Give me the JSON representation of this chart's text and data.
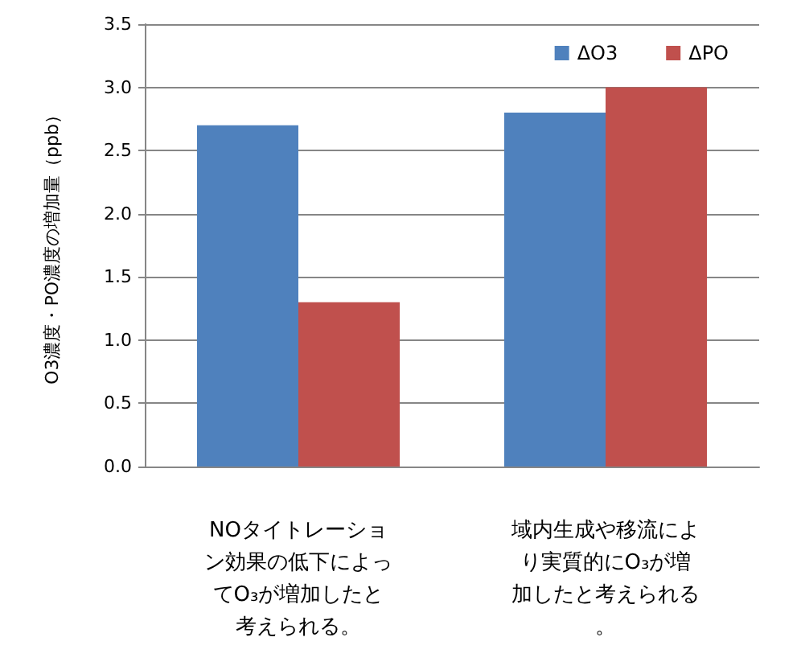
{
  "chart_data": {
    "type": "bar",
    "ylabel": "O3濃度・PO濃度の増加量（ppb）",
    "categories": [
      "NOタイトレーション効果の低下によってO₃が増加したと考えられる。",
      "域内生成や移流により実質的にO₃が増加したと考えられる。"
    ],
    "series": [
      {
        "name": "ΔO3",
        "color": "#4f81bd",
        "values": [
          2.7,
          2.8
        ]
      },
      {
        "name": "ΔPO",
        "color": "#c0504d",
        "values": [
          1.3,
          3.0
        ]
      }
    ],
    "ylim": [
      0,
      3.5
    ],
    "yticks": [
      {
        "value": 0,
        "label": "0.0"
      },
      {
        "value": 0.5,
        "label": "0.5"
      },
      {
        "value": 1,
        "label": "1.0"
      },
      {
        "value": 1.5,
        "label": "1.5"
      },
      {
        "value": 2,
        "label": "2.0"
      },
      {
        "value": 2.5,
        "label": "2.5"
      },
      {
        "value": 3,
        "label": "3.0"
      },
      {
        "value": 3.5,
        "label": "3.5"
      }
    ],
    "grid": "y",
    "legend": "top right"
  }
}
